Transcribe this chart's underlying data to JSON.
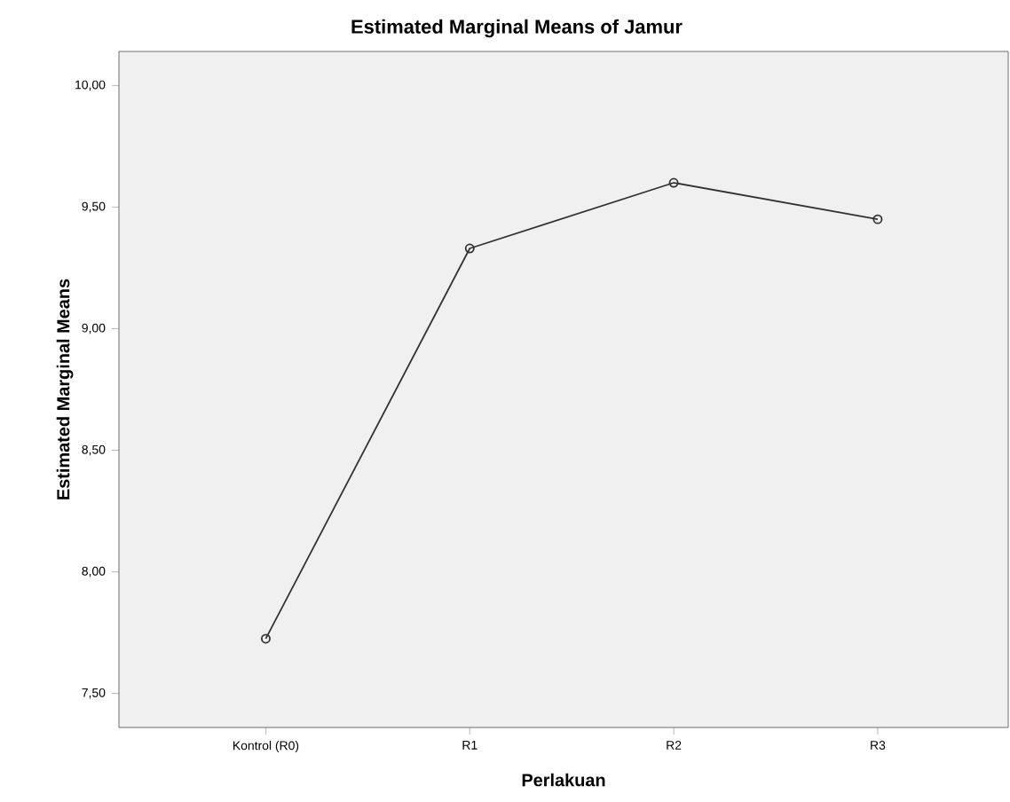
{
  "chart_data": {
    "type": "line",
    "title": "Estimated Marginal Means of Jamur",
    "xlabel": "Perlakuan",
    "ylabel": "Estimated Marginal Means",
    "categories": [
      "Kontrol (R0)",
      "R1",
      "R2",
      "R3"
    ],
    "series": [
      {
        "color": "#333333",
        "values": [
          7.725,
          9.33,
          9.6,
          9.45
        ]
      }
    ],
    "ylim": [
      7.36,
      10.14
    ],
    "yticks": [
      {
        "value": 7.5,
        "label": "7,50"
      },
      {
        "value": 8.0,
        "label": "8,00"
      },
      {
        "value": 8.5,
        "label": "8,50"
      },
      {
        "value": 9.0,
        "label": "9,00"
      },
      {
        "value": 9.5,
        "label": "9,50"
      },
      {
        "value": 10.0,
        "label": "10,00"
      }
    ],
    "marker": "circle",
    "line_style": "solid"
  }
}
